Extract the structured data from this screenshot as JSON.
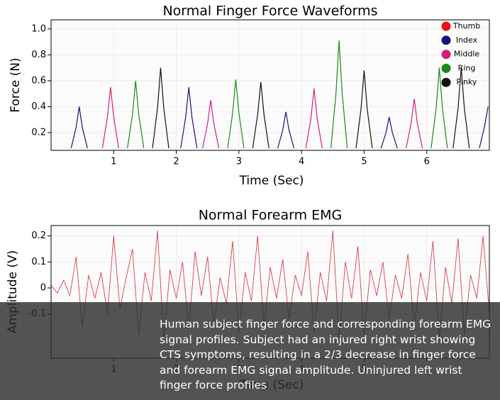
{
  "chart_data": [
    {
      "type": "line",
      "title": "Normal  Finger  Force  Waveforms",
      "x_label": "Time  (Sec)",
      "y_label": "Force  (N)",
      "xlim": [
        0,
        7
      ],
      "xticks": [
        1,
        2,
        3,
        4,
        5,
        6
      ],
      "ylim": [
        0.063,
        1.07
      ],
      "yticks": [
        0.2,
        0.4,
        0.6,
        0.8,
        {
          "value": 1.0,
          "label": "1.0"
        }
      ],
      "grid": true,
      "legend": "upper right",
      "series": [
        {
          "name": "Thumb",
          "color": "#e81010",
          "x": [],
          "values": []
        },
        {
          "name": "Index",
          "color": "#14147e",
          "x": [
            0.32,
            0.4,
            0.45,
            0.5,
            0.58,
            null,
            2.07,
            2.15,
            2.2,
            2.25,
            2.33,
            null,
            3.62,
            3.7,
            3.75,
            3.8,
            3.88,
            null,
            5.27,
            5.35,
            5.4,
            5.45,
            5.53,
            null,
            6.84,
            6.92,
            6.98
          ],
          "values": [
            0.08,
            0.24,
            0.4,
            0.24,
            0.08,
            null,
            0.08,
            0.32,
            0.55,
            0.32,
            0.08,
            null,
            0.08,
            0.22,
            0.36,
            0.22,
            0.08,
            null,
            0.08,
            0.2,
            0.32,
            0.2,
            0.08,
            null,
            0.08,
            0.24,
            0.4
          ]
        },
        {
          "name": "Middle",
          "color": "#d0207e",
          "x": [
            0.82,
            0.9,
            0.95,
            1.0,
            1.08,
            null,
            2.42,
            2.5,
            2.55,
            2.6,
            2.68,
            null,
            4.07,
            4.15,
            4.2,
            4.25,
            4.33,
            null,
            5.67,
            5.75,
            5.8,
            5.85,
            5.93
          ],
          "values": [
            0.08,
            0.32,
            0.55,
            0.32,
            0.08,
            null,
            0.08,
            0.27,
            0.45,
            0.27,
            0.08,
            null,
            0.08,
            0.31,
            0.54,
            0.31,
            0.08,
            null,
            0.08,
            0.27,
            0.46,
            0.27,
            0.08
          ]
        },
        {
          "name": "Ring",
          "color": "#1a8a1a",
          "x": [
            1.22,
            1.3,
            1.35,
            1.4,
            1.48,
            null,
            2.82,
            2.9,
            2.95,
            3.0,
            3.08,
            null,
            4.47,
            4.55,
            4.6,
            4.65,
            4.73,
            null,
            6.07,
            6.15,
            6.2,
            6.25,
            6.33
          ],
          "values": [
            0.08,
            0.34,
            0.6,
            0.34,
            0.08,
            null,
            0.08,
            0.35,
            0.61,
            0.35,
            0.08,
            null,
            0.08,
            0.5,
            0.91,
            0.5,
            0.08,
            null,
            0.08,
            0.39,
            0.7,
            0.39,
            0.08
          ]
        },
        {
          "name": "Pinky",
          "color": "#111111",
          "x": [
            1.62,
            1.7,
            1.75,
            1.8,
            1.88,
            null,
            3.22,
            3.3,
            3.35,
            3.4,
            3.48,
            null,
            4.87,
            4.95,
            5.0,
            5.05,
            5.13,
            null,
            6.42,
            6.5,
            6.55,
            6.6,
            6.68
          ],
          "values": [
            0.08,
            0.39,
            0.7,
            0.39,
            0.08,
            null,
            0.08,
            0.34,
            0.59,
            0.34,
            0.08,
            null,
            0.08,
            0.38,
            0.68,
            0.38,
            0.08,
            null,
            0.08,
            0.39,
            0.7,
            0.39,
            0.08
          ]
        }
      ]
    },
    {
      "type": "line",
      "title": "Normal  Forearm  EMG",
      "x_label": "Time  (Sec)",
      "y_label": "Amplitude  (V)",
      "xlim": [
        0,
        7
      ],
      "xticks": [
        1,
        2,
        3,
        4,
        5,
        6
      ],
      "ylim": [
        -0.27,
        0.24
      ],
      "yticks": [
        -0.1,
        0,
        0.1,
        0.2
      ],
      "grid": true,
      "series": [
        {
          "color": "#d8404e",
          "x": [
            0,
            0.1,
            0.2,
            0.3,
            0.4,
            0.5,
            0.6,
            0.7,
            0.8,
            0.9,
            1,
            1.1,
            1.2,
            1.3,
            1.4,
            1.5,
            1.6,
            1.7,
            1.8,
            1.9,
            2,
            2.1,
            2.2,
            2.3,
            2.4,
            2.5,
            2.6,
            2.7,
            2.8,
            2.9,
            3,
            3.1,
            3.2,
            3.3,
            3.4,
            3.5,
            3.6,
            3.7,
            3.8,
            3.9,
            4,
            4.1,
            4.2,
            4.3,
            4.4,
            4.5,
            4.6,
            4.7,
            4.8,
            4.9,
            5,
            5.1,
            5.2,
            5.3,
            5.4,
            5.5,
            5.6,
            5.7,
            5.8,
            5.9,
            6,
            6.1,
            6.2,
            6.3,
            6.4,
            6.5,
            6.6,
            6.7,
            6.8,
            6.9,
            7
          ],
          "values": [
            0.01,
            -0.02,
            0.03,
            -0.03,
            0.12,
            -0.15,
            0.05,
            -0.04,
            0.06,
            -0.1,
            0.2,
            -0.08,
            0.04,
            0.15,
            -0.18,
            0.06,
            -0.05,
            0.22,
            -0.2,
            0.07,
            -0.04,
            0.1,
            -0.16,
            0.14,
            -0.03,
            0.12,
            -0.14,
            0.04,
            -0.06,
            0.18,
            -0.17,
            0.06,
            -0.05,
            0.2,
            -0.15,
            0.08,
            -0.04,
            0.11,
            -0.12,
            0.05,
            -0.03,
            0.14,
            -0.17,
            0.06,
            -0.05,
            0.22,
            -0.2,
            0.1,
            -0.04,
            0.16,
            -0.18,
            0.07,
            -0.03,
            0.1,
            -0.12,
            0.05,
            -0.04,
            0.13,
            -0.15,
            0.06,
            -0.05,
            0.18,
            -0.2,
            0.08,
            -0.06,
            0.19,
            -0.18,
            0.05,
            -0.04,
            0.2,
            -0.1
          ]
        }
      ]
    }
  ],
  "caption": "Human subject finger force and corresponding forearm EMG signal profiles. Subject had an injured right wrist showing CTS symptoms, resulting in a 2/3 decrease in finger force and forearm EMG signal amplitude. Uninjured left wrist finger force profiles"
}
